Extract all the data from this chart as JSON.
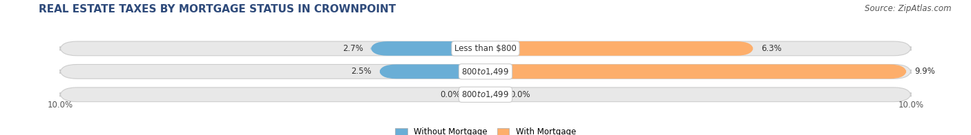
{
  "title": "REAL ESTATE TAXES BY MORTGAGE STATUS IN CROWNPOINT",
  "source": "Source: ZipAtlas.com",
  "rows": [
    {
      "label": "Less than $800",
      "without_mortgage": 2.7,
      "with_mortgage": 6.3
    },
    {
      "label": "$800 to $1,499",
      "without_mortgage": 2.5,
      "with_mortgage": 9.9
    },
    {
      "label": "$800 to $1,499",
      "without_mortgage": 0.0,
      "with_mortgage": 0.0
    }
  ],
  "x_min": -10.0,
  "x_max": 10.0,
  "x_left_label": "10.0%",
  "x_right_label": "10.0%",
  "color_without": "#6aaed6",
  "color_with": "#fdae6b",
  "color_without_light": "#b8d9ef",
  "color_with_light": "#fdd9b0",
  "bar_height": 0.62,
  "background_bar_color": "#e8e8e8",
  "legend_without": "Without Mortgage",
  "legend_with": "With Mortgage",
  "title_fontsize": 11,
  "source_fontsize": 8.5,
  "label_fontsize": 8.5,
  "value_fontsize": 8.5,
  "tick_fontsize": 8.5,
  "title_color": "#2e4a7a",
  "source_color": "#555555"
}
